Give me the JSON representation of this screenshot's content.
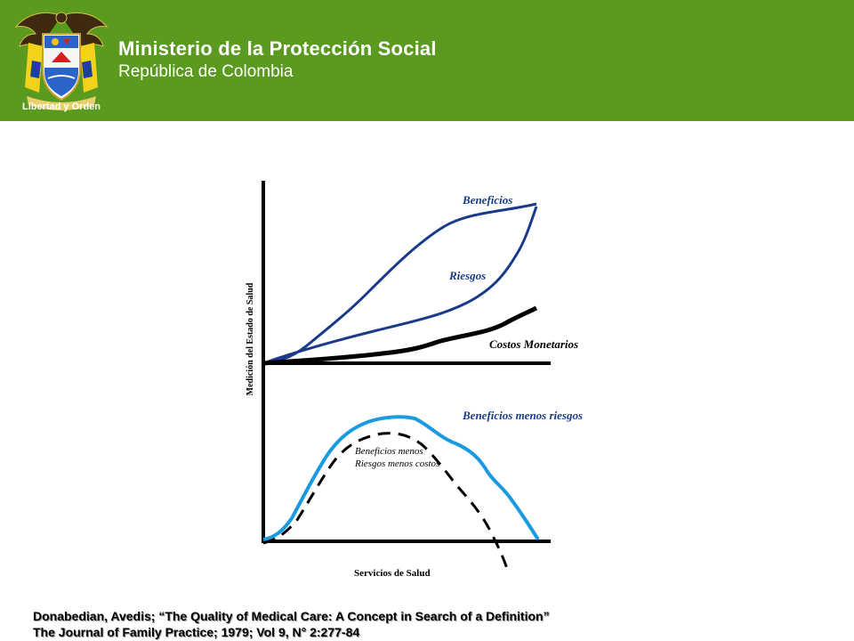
{
  "header": {
    "title": "Ministerio de la Protección Social",
    "subtitle": "República de Colombia",
    "motto": "Libertad y Orden",
    "background_color": "#5a9a1e"
  },
  "diagram": {
    "y_axis_label": "Medición del Estado de Salud",
    "x_axis_label": "Servicios de Salud",
    "labels": {
      "benefits": "Beneficios",
      "risks": "Riesgos",
      "costs": "Costos Monetarios",
      "benefits_minus_risks": "Beneficios menos riesgos",
      "net_line1": "Beneficios menos",
      "net_line2": "Riesgos menos costos"
    },
    "colors": {
      "benefits": "#1a3a8c",
      "risks": "#1a3a8c",
      "costs": "#000000",
      "benefits_minus_risks": "#1a9ae0",
      "net": "#000000"
    }
  },
  "citation": {
    "line1": "Donabedian, Avedis; “The Quality of Medical Care: A Concept in Search of a Definition”",
    "line2": "The Journal of Family Practice;  1979; Vol 9, N° 2:277-84"
  }
}
